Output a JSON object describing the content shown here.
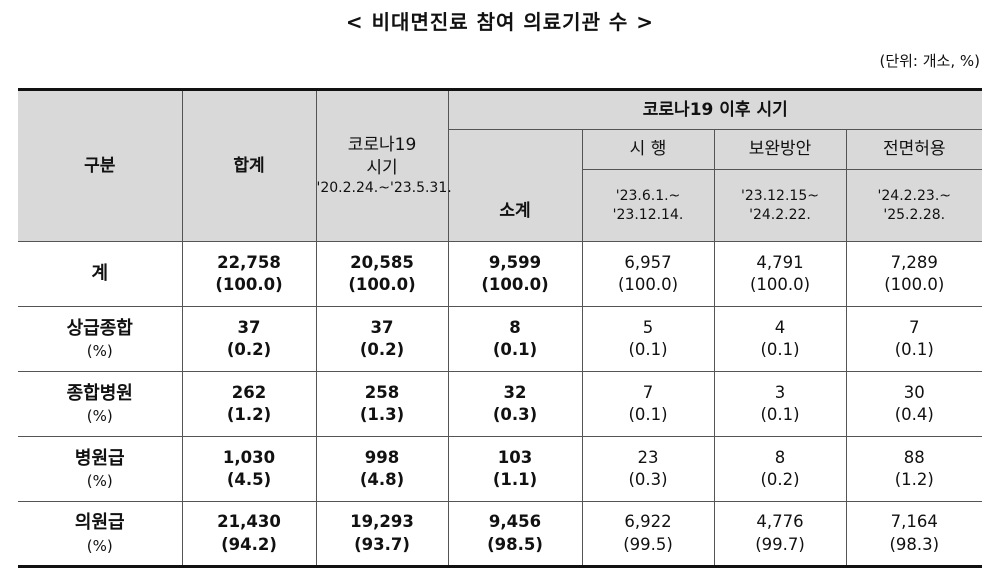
{
  "title": "< 비대면진료 참여 의료기관 수 >",
  "unit": "(단위: 개소, %)",
  "header": {
    "category": "구분",
    "total": "합계",
    "covid_period_line1": "코로나19",
    "covid_period_line2": "시기",
    "covid_period_dates": "'20.2.24.~'23.5.31.",
    "post_covid": "코로나19 이후 시기",
    "subtotal": "소계",
    "pilot": "시 행",
    "pilot_dates_1": "'23.6.1.~",
    "pilot_dates_2": "'23.12.14.",
    "supplement": "보완방안",
    "supplement_dates_1": "'23.12.15~",
    "supplement_dates_2": "'24.2.22.",
    "full": "전면허용",
    "full_dates_1": "'24.2.23.~",
    "full_dates_2": "'25.2.28."
  },
  "rows": [
    {
      "label": "계",
      "pct_label": "",
      "values": [
        "22,758",
        "20,585",
        "9,599",
        "6,957",
        "4,791",
        "7,289"
      ],
      "pcts": [
        "(100.0)",
        "(100.0)",
        "(100.0)",
        "(100.0)",
        "(100.0)",
        "(100.0)"
      ]
    },
    {
      "label": "상급종합",
      "pct_label": "(%)",
      "values": [
        "37",
        "37",
        "8",
        "5",
        "4",
        "7"
      ],
      "pcts": [
        "(0.2)",
        "(0.2)",
        "(0.1)",
        "(0.1)",
        "(0.1)",
        "(0.1)"
      ]
    },
    {
      "label": "종합병원",
      "pct_label": "(%)",
      "values": [
        "262",
        "258",
        "32",
        "7",
        "3",
        "30"
      ],
      "pcts": [
        "(1.2)",
        "(1.3)",
        "(0.3)",
        "(0.1)",
        "(0.1)",
        "(0.4)"
      ]
    },
    {
      "label": "병원급",
      "pct_label": "(%)",
      "values": [
        "1,030",
        "998",
        "103",
        "23",
        "8",
        "88"
      ],
      "pcts": [
        "(4.5)",
        "(4.8)",
        "(1.1)",
        "(0.3)",
        "(0.2)",
        "(1.2)"
      ]
    },
    {
      "label": "의원급",
      "pct_label": "(%)",
      "values": [
        "21,430",
        "19,293",
        "9,456",
        "6,922",
        "4,776",
        "7,164"
      ],
      "pcts": [
        "(94.2)",
        "(93.7)",
        "(98.5)",
        "(99.5)",
        "(99.7)",
        "(98.3)"
      ]
    }
  ]
}
